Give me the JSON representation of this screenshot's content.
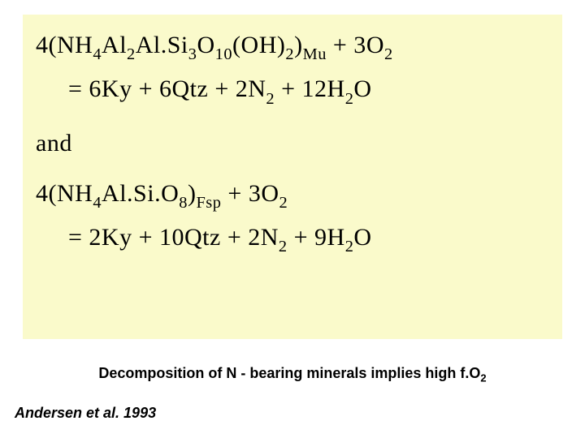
{
  "colors": {
    "slide_background": "#ffffff",
    "box_background": "#fafacb",
    "text": "#000000"
  },
  "typography": {
    "equation_font": "Times New Roman, serif",
    "equation_size_pt": 22,
    "body_font": "Arial, sans-serif",
    "caption_size_pt": 14,
    "citation_size_pt": 14
  },
  "equations": {
    "line1_lead": "4",
    "line1_lparen": "(",
    "line1_nh": "NH",
    "line1_nh_sub": "4",
    "line1_al1": "Al",
    "line1_al1_sub": "2",
    "line1_al2": "Al.Si",
    "line1_si_sub": "3",
    "line1_o1": "O",
    "line1_o1_sub": "10",
    "line1_oh": "(OH)",
    "line1_oh_sub": "2",
    "line1_rparen": ")",
    "line1_phase": "Mu",
    "line1_plus": " + 3",
    "line1_o2": "O",
    "line1_o2_sub": "2",
    "line2_eq": "= 6",
    "line2_ky": "Ky + 6",
    "line2_qtz": "Qtz + 2",
    "line2_n": "N",
    "line2_n_sub": "2",
    "line2_plus": " + 12",
    "line2_h": "H",
    "line2_h_sub": "2",
    "line2_o": "O",
    "and": "and",
    "line3_lead": "4",
    "line3_lparen": "(",
    "line3_nh": "NH",
    "line3_nh_sub": "4",
    "line3_alsi": "Al.Si.O",
    "line3_o_sub": "8",
    "line3_rparen": ")",
    "line3_phase": "Fsp",
    "line3_plus": " + 3",
    "line3_o2": "O",
    "line3_o2_sub": "2",
    "line4_eq": "= 2",
    "line4_ky": "Ky + 10",
    "line4_qtz": "Qtz + 2",
    "line4_n": "N",
    "line4_n_sub": "2",
    "line4_plus": " + 9",
    "line4_h": "H",
    "line4_h_sub": "2",
    "line4_o": "O"
  },
  "caption": {
    "text_pre": "Decomposition of N - bearing minerals implies high f.O",
    "sub": "2"
  },
  "citation": "Andersen et al. 1993"
}
